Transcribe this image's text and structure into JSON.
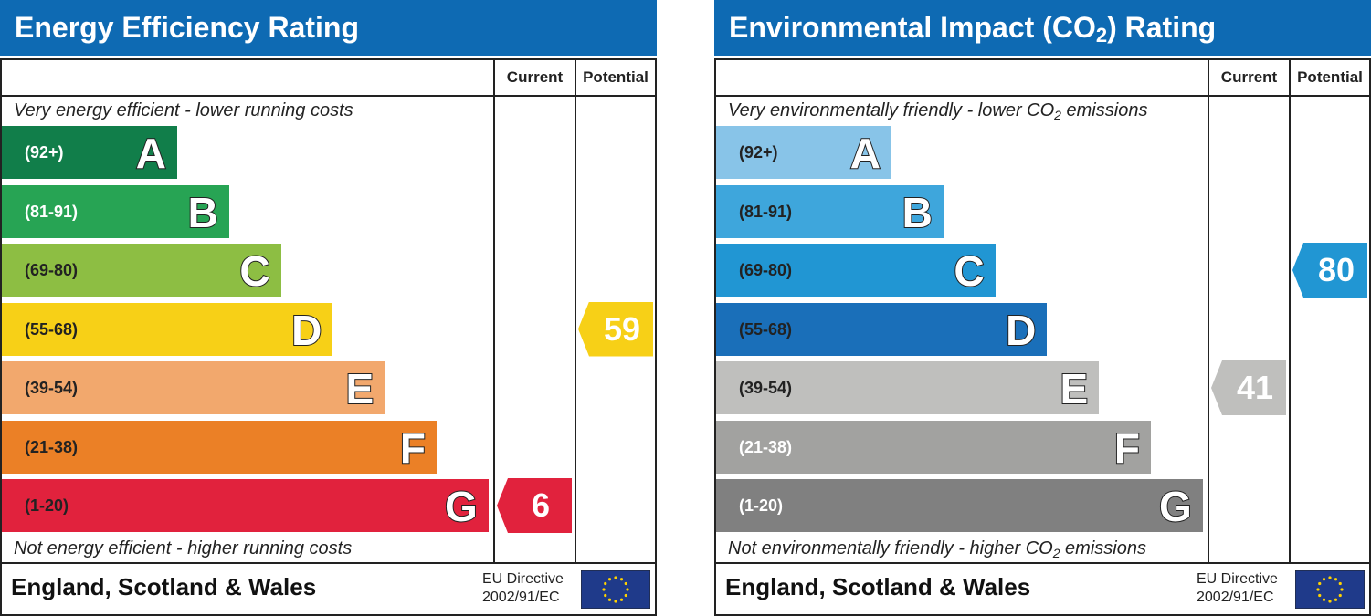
{
  "chart_data": [
    {
      "type": "bar",
      "title": "Energy Efficiency Rating",
      "columns": [
        "Current",
        "Potential"
      ],
      "caption_top": "Very energy efficient - lower running costs",
      "caption_bottom": "Not energy efficient - higher running costs",
      "bands": [
        {
          "letter": "A",
          "range": "(92+)",
          "color": "#117e4a",
          "text_color": "#ffffff"
        },
        {
          "letter": "B",
          "range": "(81-91)",
          "color": "#27a454",
          "text_color": "#ffffff"
        },
        {
          "letter": "C",
          "range": "(69-80)",
          "color": "#8dbe43",
          "text_color": "#222222"
        },
        {
          "letter": "D",
          "range": "(55-68)",
          "color": "#f7d017",
          "text_color": "#222222"
        },
        {
          "letter": "E",
          "range": "(39-54)",
          "color": "#f2a86d",
          "text_color": "#222222"
        },
        {
          "letter": "F",
          "range": "(21-38)",
          "color": "#eb8026",
          "text_color": "#222222"
        },
        {
          "letter": "G",
          "range": "(1-20)",
          "color": "#e1223d",
          "text_color": "#222222"
        }
      ],
      "current": {
        "value": 6,
        "band": "G",
        "color": "#e1223d"
      },
      "potential": {
        "value": 59,
        "band": "D",
        "color": "#f7d017"
      },
      "region": "England, Scotland & Wales",
      "directive_line1": "EU Directive",
      "directive_line2": "2002/91/EC"
    },
    {
      "type": "bar",
      "title_main": "Environmental Impact (CO",
      "title_sub": "2",
      "title_end": ") Rating",
      "columns": [
        "Current",
        "Potential"
      ],
      "caption_top_main": "Very environmentally friendly - lower CO",
      "caption_top_sub": "2",
      "caption_top_end": " emissions",
      "caption_bottom_main": "Not environmentally friendly - higher CO",
      "caption_bottom_sub": "2",
      "caption_bottom_end": " emissions",
      "bands": [
        {
          "letter": "A",
          "range": "(92+)",
          "color": "#88c4e8",
          "text_color": "#222222"
        },
        {
          "letter": "B",
          "range": "(81-91)",
          "color": "#3ea6dc",
          "text_color": "#222222"
        },
        {
          "letter": "C",
          "range": "(69-80)",
          "color": "#2196d3",
          "text_color": "#222222"
        },
        {
          "letter": "D",
          "range": "(55-68)",
          "color": "#1a6fb9",
          "text_color": "#222222"
        },
        {
          "letter": "E",
          "range": "(39-54)",
          "color": "#bfbfbd",
          "text_color": "#222222"
        },
        {
          "letter": "F",
          "range": "(21-38)",
          "color": "#a2a2a0",
          "text_color": "#ffffff"
        },
        {
          "letter": "G",
          "range": "(1-20)",
          "color": "#808080",
          "text_color": "#ffffff"
        }
      ],
      "current": {
        "value": 41,
        "band": "E",
        "color": "#bfbfbd"
      },
      "potential": {
        "value": 80,
        "band": "C",
        "color": "#2196d3"
      },
      "region": "England, Scotland & Wales",
      "directive_line1": "EU Directive",
      "directive_line2": "2002/91/EC"
    }
  ]
}
